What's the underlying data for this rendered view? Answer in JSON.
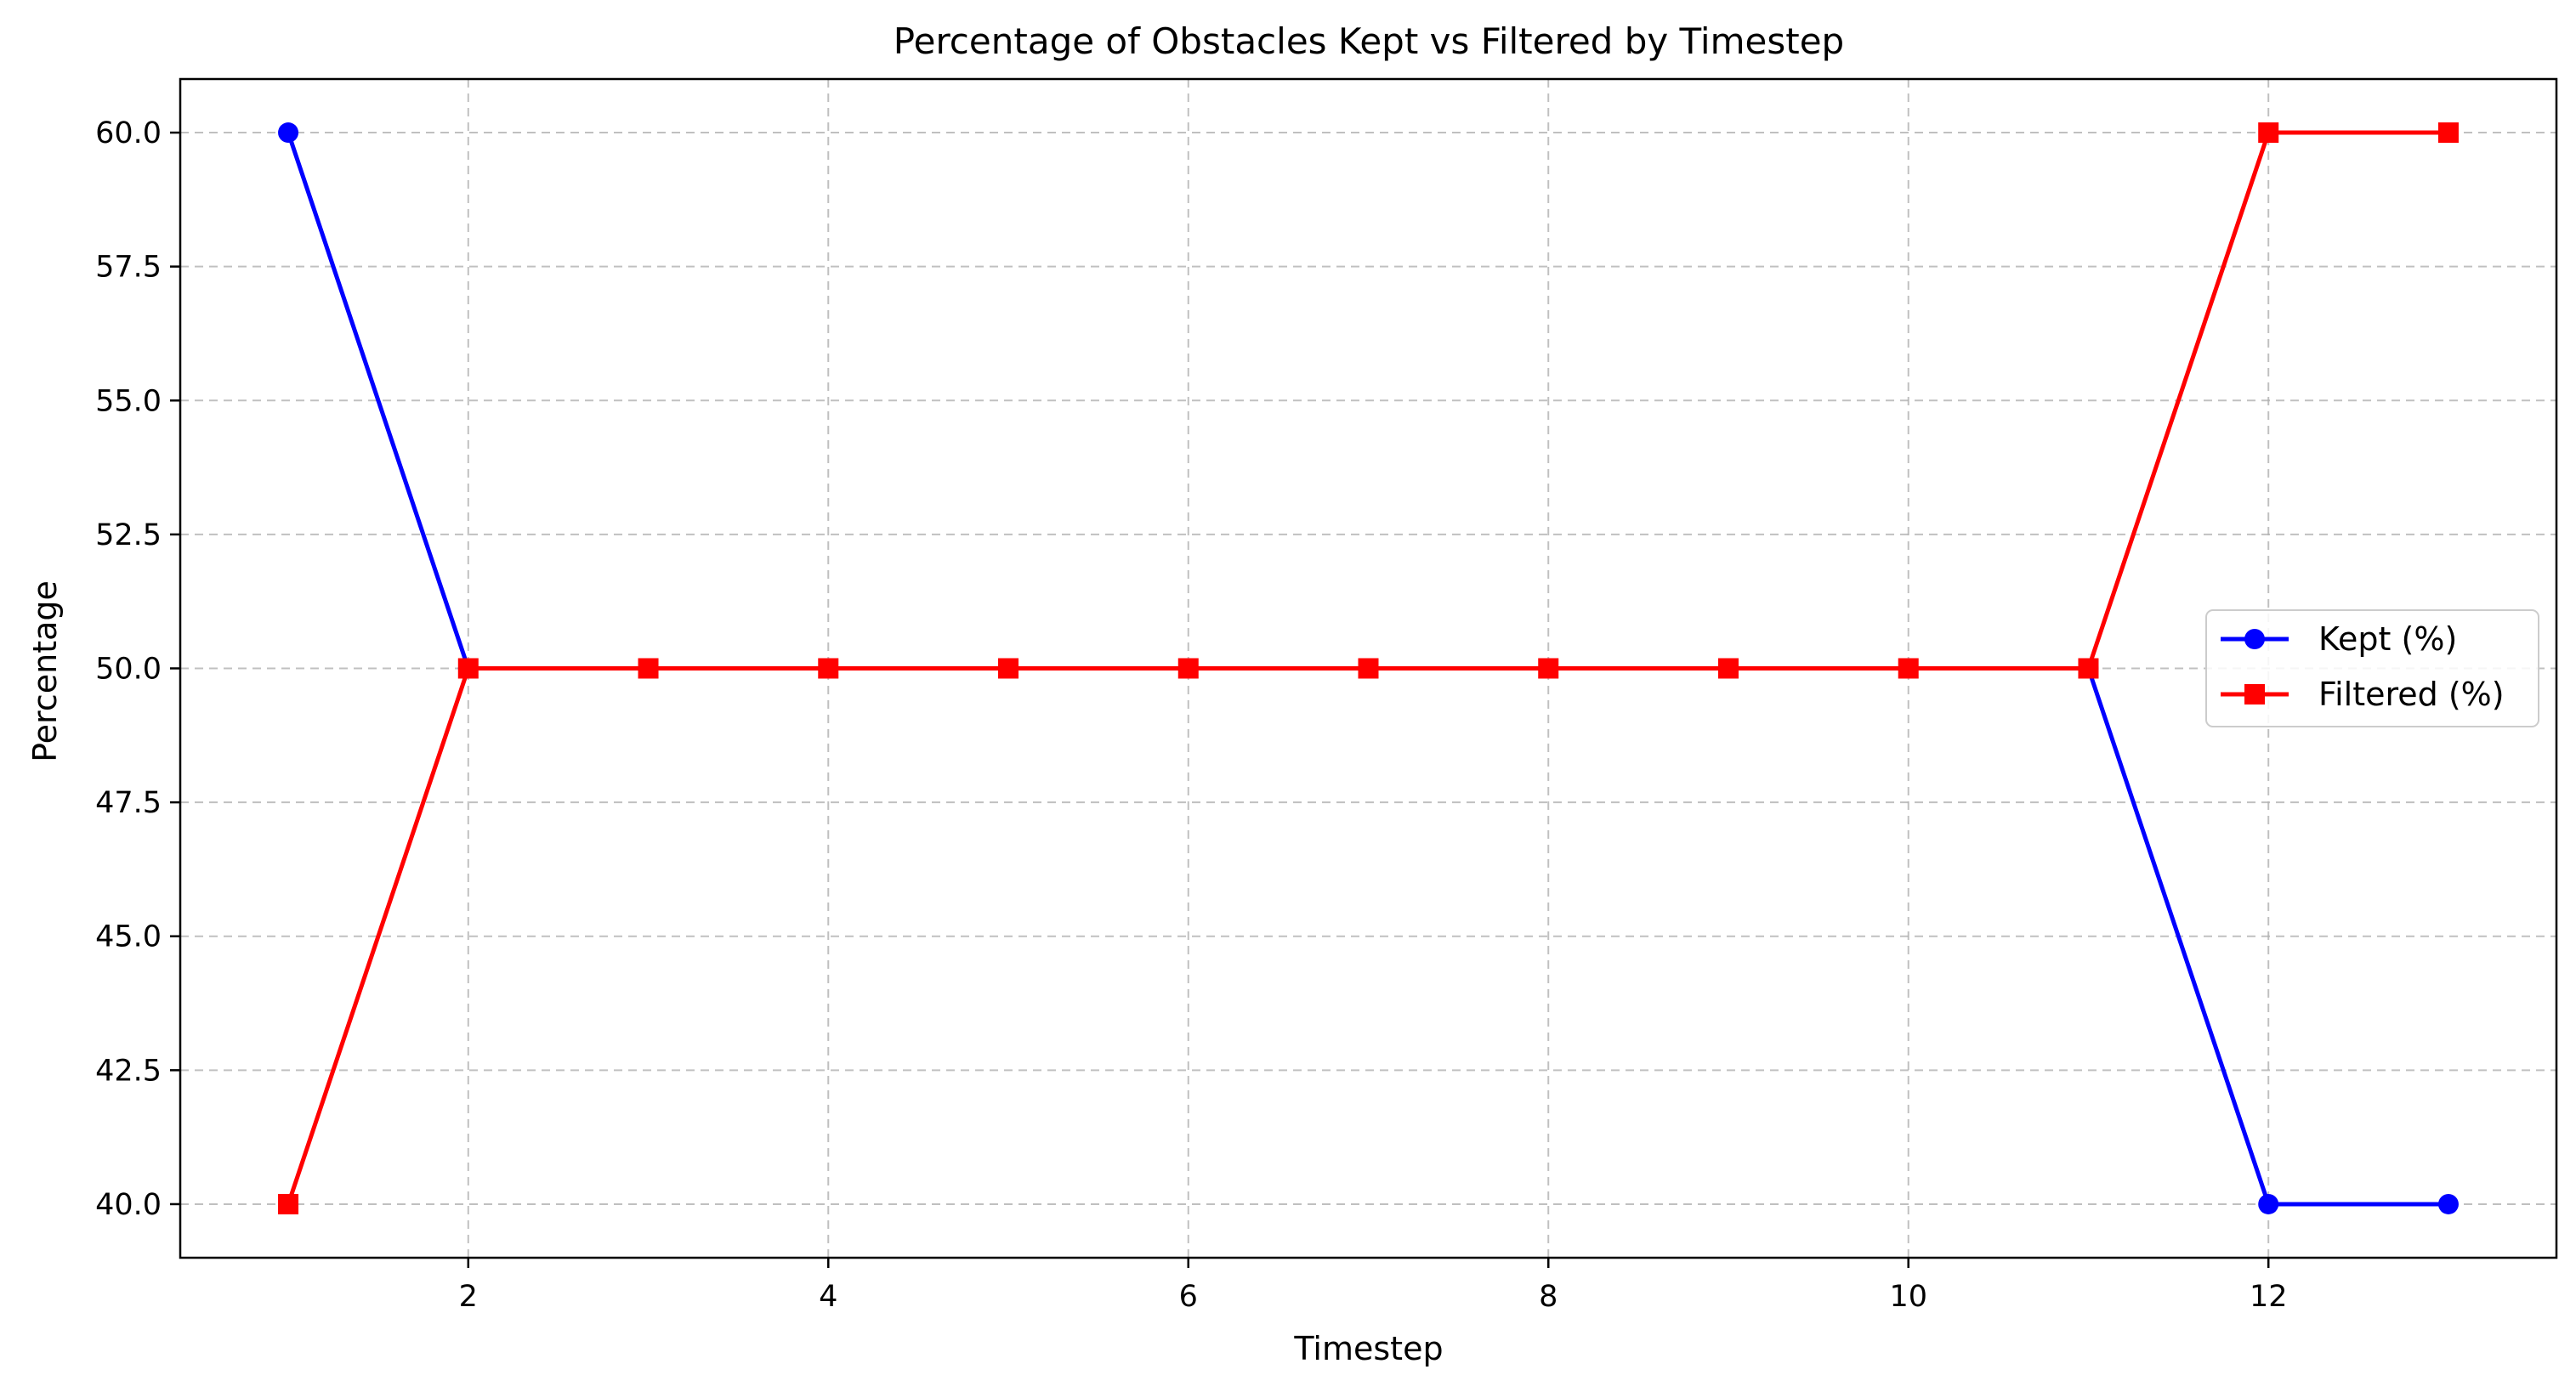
{
  "chart_data": {
    "type": "line",
    "title": "Percentage of Obstacles Kept vs Filtered by Timestep",
    "xlabel": "Timestep",
    "ylabel": "Percentage",
    "x": [
      1,
      2,
      3,
      4,
      5,
      6,
      7,
      8,
      9,
      10,
      11,
      12,
      13
    ],
    "xlim": [
      0.4,
      13.6
    ],
    "ylim": [
      39.0,
      61.0
    ],
    "xticks": [
      2,
      4,
      6,
      8,
      10,
      12
    ],
    "yticks": [
      40.0,
      42.5,
      45.0,
      47.5,
      50.0,
      52.5,
      55.0,
      57.5,
      60.0
    ],
    "grid": true,
    "legend_position": "center-right",
    "series": [
      {
        "name": "Kept (%)",
        "color": "#0000ff",
        "marker": "circle",
        "values": [
          60,
          50,
          50,
          50,
          50,
          50,
          50,
          50,
          50,
          50,
          50,
          40,
          40
        ]
      },
      {
        "name": "Filtered (%)",
        "color": "#ff0000",
        "marker": "square",
        "values": [
          40,
          50,
          50,
          50,
          50,
          50,
          50,
          50,
          50,
          50,
          50,
          60,
          60
        ]
      }
    ]
  }
}
